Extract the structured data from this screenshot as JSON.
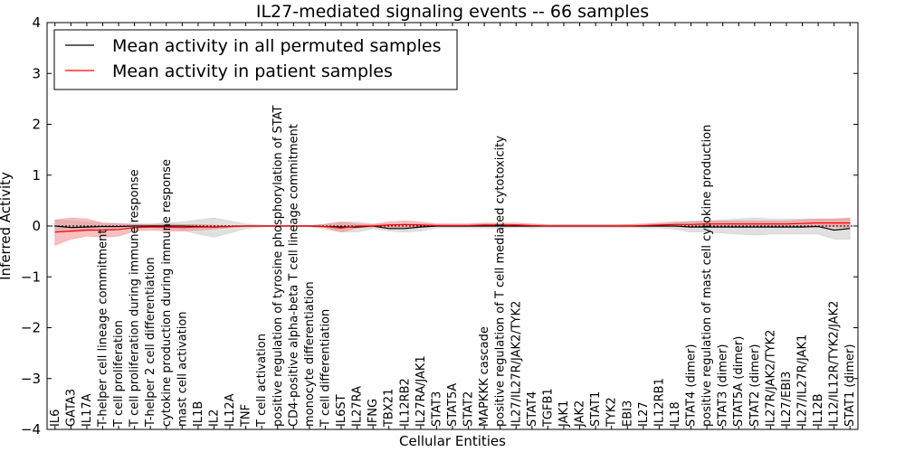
{
  "chart_data": {
    "type": "line",
    "title": "IL27-mediated signaling events -- 66 samples",
    "xlabel": "Cellular Entities",
    "ylabel": "Inferred Activity",
    "ylim": [
      -4,
      4
    ],
    "yticks": [
      -4,
      -3,
      -2,
      -1,
      0,
      1,
      2,
      3,
      4
    ],
    "ytick_labels": [
      "−4",
      "−3",
      "−2",
      "−1",
      "0",
      "1",
      "2",
      "3",
      "4"
    ],
    "legend_position": "top-left",
    "categories": [
      "IL6",
      "GATA3",
      "IL17A",
      "T-helper cell lineage commitment",
      "T cell proliferation",
      "T cell proliferation during immune response",
      "T-helper 2 cell differentiation",
      "cytokine production during immune response",
      "mast cell activation",
      "IL1B",
      "IL2",
      "IL12A",
      "TNF",
      "T cell activation",
      "positive regulation of tyrosine phosphorylation of STAT",
      "CD4-positive alpha-beta T cell lineage commitment",
      "monocyte differentiation",
      "T cell differentiation",
      "IL6ST",
      "IL27RA",
      "IFNG",
      "TBX21",
      "IL12RB2",
      "IL27RA/JAK1",
      "STAT3",
      "STAT5A",
      "STAT2",
      "MAPKKK cascade",
      "positive regulation of T cell mediated cytotoxicity",
      "IL27/IL27R/JAK2/TYK2",
      "STAT4",
      "TGFB1",
      "JAK1",
      "JAK2",
      "STAT1",
      "TYK2",
      "EBI3",
      "IL27",
      "IL12RB1",
      "IL18",
      "STAT4 (dimer)",
      "positive regulation of mast cell cytokine production",
      "STAT3 (dimer)",
      "STAT5A (dimer)",
      "STAT2 (dimer)",
      "IL27R/JAK2/TYK2",
      "IL27/EBI3",
      "IL27/IL27R/JAK1",
      "IL12B",
      "IL12/IL12R/TYK2/JAK2",
      "STAT1 (dimer)"
    ],
    "series": [
      {
        "name": "Mean activity in all permuted samples",
        "color": "#000000",
        "band_color": "#bbbbbb",
        "values": [
          0.0,
          -0.03,
          -0.02,
          -0.01,
          -0.01,
          0.0,
          0.0,
          0.0,
          0.0,
          -0.01,
          -0.02,
          -0.01,
          0.0,
          0.0,
          0.0,
          0.0,
          0.0,
          -0.01,
          -0.02,
          -0.02,
          0.0,
          -0.05,
          -0.05,
          -0.02,
          0.0,
          0.0,
          0.0,
          0.0,
          0.0,
          0.0,
          0.0,
          0.0,
          0.0,
          0.0,
          0.0,
          0.0,
          0.0,
          0.0,
          0.0,
          0.0,
          -0.02,
          -0.02,
          -0.02,
          -0.02,
          -0.02,
          -0.02,
          -0.02,
          -0.02,
          -0.01,
          -0.08,
          -0.05
        ],
        "band_lower": [
          -0.1,
          -0.12,
          -0.1,
          -0.08,
          -0.06,
          -0.04,
          -0.03,
          -0.06,
          -0.08,
          -0.16,
          -0.22,
          -0.14,
          -0.05,
          -0.02,
          -0.01,
          -0.01,
          -0.01,
          -0.06,
          -0.12,
          -0.12,
          -0.05,
          -0.1,
          -0.12,
          -0.1,
          -0.04,
          -0.04,
          -0.04,
          -0.04,
          -0.04,
          -0.03,
          -0.04,
          -0.03,
          -0.03,
          -0.03,
          -0.03,
          -0.03,
          -0.03,
          -0.04,
          -0.04,
          -0.06,
          -0.12,
          -0.12,
          -0.14,
          -0.16,
          -0.18,
          -0.16,
          -0.16,
          -0.16,
          -0.16,
          -0.26,
          -0.26
        ],
        "band_upper": [
          0.12,
          0.1,
          0.08,
          0.06,
          0.05,
          0.05,
          0.04,
          0.06,
          0.08,
          0.12,
          0.16,
          0.1,
          0.04,
          0.02,
          0.01,
          0.01,
          0.01,
          0.04,
          0.08,
          0.08,
          0.04,
          0.04,
          0.04,
          0.04,
          0.04,
          0.04,
          0.04,
          0.04,
          0.04,
          0.03,
          0.04,
          0.03,
          0.03,
          0.03,
          0.03,
          0.03,
          0.03,
          0.04,
          0.04,
          0.06,
          0.1,
          0.1,
          0.12,
          0.14,
          0.16,
          0.14,
          0.14,
          0.14,
          0.14,
          0.14,
          0.14
        ]
      },
      {
        "name": "Mean activity in patient samples",
        "color": "#ff0000",
        "band_color": "#f08080",
        "values": [
          -0.12,
          -0.1,
          -0.08,
          -0.08,
          -0.07,
          -0.03,
          -0.02,
          -0.02,
          -0.03,
          -0.02,
          -0.02,
          -0.01,
          0.0,
          0.0,
          0.0,
          0.0,
          0.0,
          -0.01,
          -0.04,
          0.0,
          0.0,
          0.02,
          0.03,
          0.02,
          0.01,
          0.01,
          0.01,
          0.02,
          0.02,
          0.02,
          0.01,
          0.0,
          0.0,
          0.0,
          0.0,
          0.0,
          0.0,
          0.01,
          0.02,
          0.03,
          0.03,
          0.04,
          0.04,
          0.04,
          0.04,
          0.04,
          0.04,
          0.05,
          0.06,
          0.06,
          0.06
        ],
        "band_lower": [
          -0.38,
          -0.26,
          -0.2,
          -0.22,
          -0.2,
          -0.1,
          -0.08,
          -0.1,
          -0.1,
          -0.08,
          -0.06,
          -0.03,
          -0.01,
          0.0,
          0.0,
          0.0,
          -0.01,
          -0.03,
          -0.12,
          -0.04,
          -0.02,
          -0.04,
          -0.03,
          -0.02,
          -0.01,
          -0.01,
          -0.01,
          -0.01,
          -0.01,
          -0.01,
          -0.01,
          -0.01,
          -0.01,
          -0.01,
          -0.01,
          -0.01,
          -0.01,
          -0.01,
          -0.01,
          -0.01,
          -0.02,
          -0.02,
          -0.02,
          -0.02,
          -0.02,
          -0.02,
          -0.02,
          -0.02,
          -0.02,
          -0.02,
          -0.04
        ],
        "band_upper": [
          0.12,
          0.16,
          0.14,
          0.06,
          0.04,
          0.03,
          0.03,
          0.04,
          0.03,
          0.03,
          0.02,
          0.01,
          0.01,
          0.0,
          0.0,
          0.0,
          0.01,
          0.03,
          0.08,
          0.04,
          0.03,
          0.08,
          0.1,
          0.08,
          0.04,
          0.04,
          0.04,
          0.06,
          0.06,
          0.06,
          0.04,
          0.02,
          0.02,
          0.02,
          0.02,
          0.02,
          0.03,
          0.04,
          0.06,
          0.08,
          0.08,
          0.1,
          0.1,
          0.1,
          0.1,
          0.1,
          0.1,
          0.12,
          0.14,
          0.14,
          0.16
        ]
      }
    ]
  }
}
